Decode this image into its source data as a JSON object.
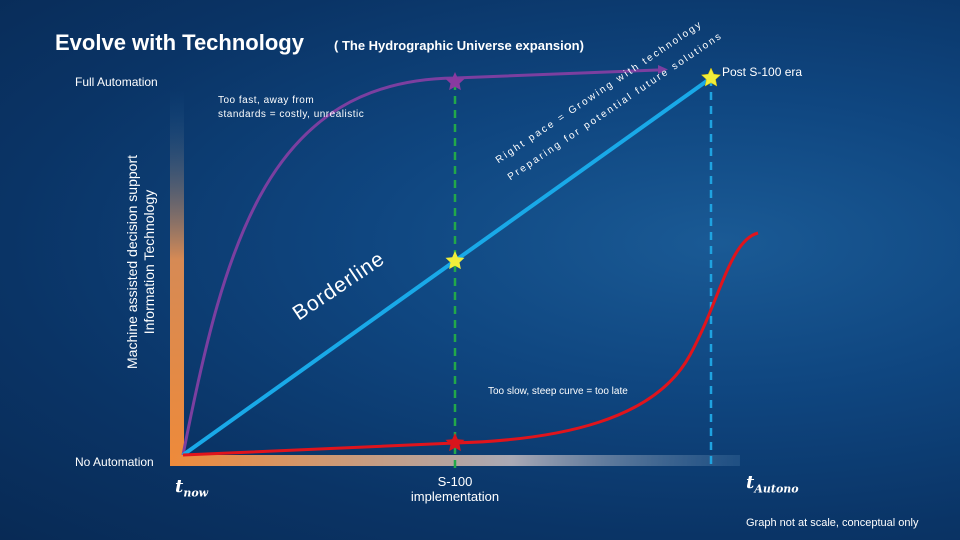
{
  "header": {
    "title": "Evolve with Technology",
    "subtitle": "( The Hydrographic Universe expansion)"
  },
  "axes": {
    "y_label_line1": "Machine assisted decision support",
    "y_label_line2": "Information Technology",
    "y_top_label": "Full Automation",
    "y_bottom_label": "No Automation",
    "x_left_label": "t",
    "x_left_sub": "now",
    "x_right_label": "t",
    "x_right_sub": "Autono"
  },
  "annotations": {
    "post_era": "Post S-100 era",
    "too_fast_line1": "Too fast, away from",
    "too_fast_line2": "standards = costly, unrealistic",
    "too_slow": "Too slow, steep curve = too late",
    "borderline": "Borderline",
    "right_pace": "Right pace = Growing with technology",
    "preparing": "Preparing for potential future solutions",
    "s100_line1": "S-100",
    "s100_line2": "implementation",
    "scale_note": "Graph not at scale, conceptual only"
  },
  "colors": {
    "too_fast_curve": "#7b3fa0",
    "right_pace_line": "#19a9e8",
    "too_slow_curve": "#e0141c",
    "s100_marker": "#22a84a",
    "autonomy_marker": "#1fa3e0",
    "star_yellow": "#f0ee3a",
    "star_purple": "#8a3aa0",
    "star_red": "#d8141c",
    "axis_orange": "#ee8a3a"
  }
}
